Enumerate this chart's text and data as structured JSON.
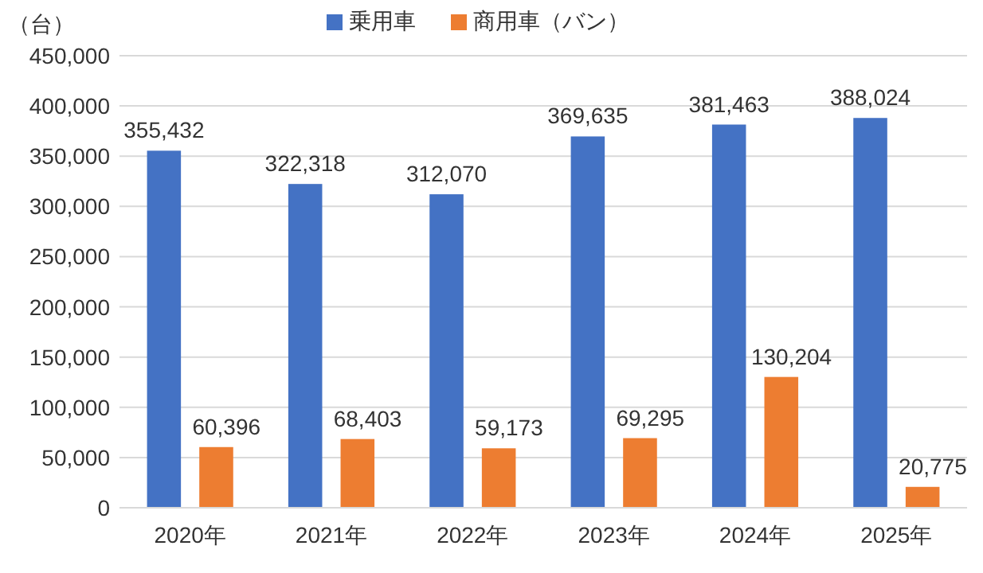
{
  "chart_data": {
    "type": "bar",
    "ylabel": "（台）",
    "categories": [
      "2020年",
      "2021年",
      "2022年",
      "2023年",
      "2024年",
      "2025年"
    ],
    "series": [
      {
        "name": "乗用車",
        "color": "#4472c4",
        "values": [
          355432,
          322318,
          312070,
          369635,
          381463,
          388024
        ],
        "value_labels": [
          "355,432",
          "322,318",
          "312,070",
          "369,635",
          "381,463",
          "388,024"
        ]
      },
      {
        "name": "商用車（バン）",
        "color": "#ed7d31",
        "values": [
          60396,
          68403,
          59173,
          69295,
          130204,
          20775
        ],
        "value_labels": [
          "60,396",
          "68,403",
          "59,173",
          "69,295",
          "130,204",
          "20,775"
        ]
      }
    ],
    "ylim": [
      0,
      450000
    ],
    "yticks": [
      {
        "value": 0,
        "label": "0"
      },
      {
        "value": 50000,
        "label": "50,000"
      },
      {
        "value": 100000,
        "label": "100,000"
      },
      {
        "value": 150000,
        "label": "150,000"
      },
      {
        "value": 200000,
        "label": "200,000"
      },
      {
        "value": 250000,
        "label": "250,000"
      },
      {
        "value": 300000,
        "label": "300,000"
      },
      {
        "value": 350000,
        "label": "350,000"
      },
      {
        "value": 400000,
        "label": "400,000"
      },
      {
        "value": 450000,
        "label": "450,000"
      }
    ],
    "grid": "y",
    "legend": "top"
  }
}
